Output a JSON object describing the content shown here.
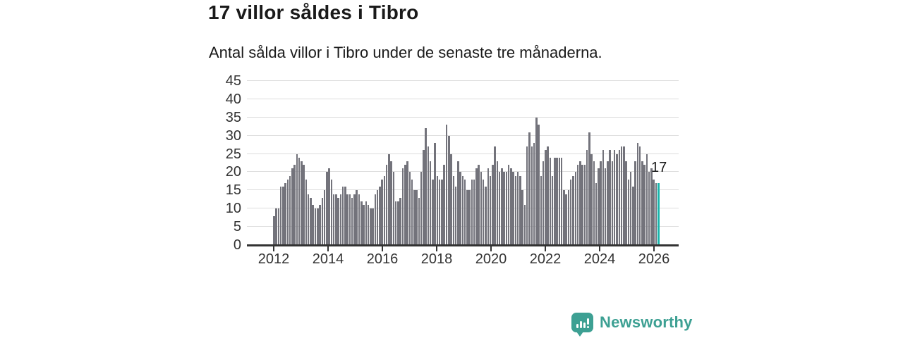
{
  "title": "17 villor såldes i Tibro",
  "subtitle": "Antal sålda villor i Tibro under de senaste tre månaderna.",
  "chart_data": {
    "type": "bar",
    "title": "17 villor såldes i Tibro",
    "subtitle": "Antal sålda villor i Tibro under de senaste tre månaderna.",
    "unit": "sålda villor (rullande 3 månader)",
    "frequency": "monthly",
    "x_start": "2012-03",
    "x_end": "2026-02",
    "values": [
      8,
      10,
      10,
      16,
      16,
      17,
      18,
      19,
      21,
      22,
      25,
      24,
      23,
      22,
      18,
      14,
      13,
      11,
      10,
      10,
      11,
      13,
      15,
      20,
      21,
      18,
      14,
      14,
      13,
      14,
      16,
      16,
      14,
      14,
      13,
      14,
      15,
      14,
      12,
      11,
      12,
      11,
      10,
      10,
      14,
      15,
      16,
      18,
      19,
      22,
      25,
      23,
      20,
      12,
      12,
      13,
      21,
      22,
      23,
      20,
      18,
      15,
      15,
      13,
      20,
      26,
      32,
      27,
      23,
      18,
      28,
      19,
      18,
      18,
      22,
      33,
      30,
      25,
      19,
      16,
      23,
      20,
      19,
      18,
      15,
      15,
      18,
      18,
      21,
      22,
      20,
      18,
      16,
      21,
      19,
      22,
      27,
      23,
      20,
      21,
      20,
      20,
      22,
      21,
      20,
      19,
      20,
      19,
      15,
      11,
      27,
      31,
      27,
      28,
      35,
      33,
      19,
      23,
      26,
      27,
      24,
      19,
      24,
      24,
      24,
      24,
      15,
      14,
      15,
      18,
      19,
      20,
      22,
      23,
      22,
      22,
      26,
      31,
      25,
      23,
      17,
      21,
      23,
      26,
      21,
      23,
      26,
      23,
      26,
      25,
      26,
      27,
      27,
      23,
      18,
      20,
      16,
      23,
      28,
      27,
      23,
      22,
      25,
      20,
      21,
      18,
      17,
      17
    ],
    "highlight": {
      "index": 167,
      "value": 17,
      "label": "17",
      "color": "#1ab5ac"
    },
    "bar_color": "#73737b",
    "grid": "horizontal",
    "gridline_color": "#dddddd",
    "axis_color": "#333333",
    "y_ticks": [
      0,
      5,
      10,
      15,
      20,
      25,
      30,
      35,
      40,
      45
    ],
    "ylim": [
      0,
      45
    ],
    "ylabel": "",
    "xlabel": "",
    "x_tick_labels": [
      "2012",
      "2014",
      "2016",
      "2018",
      "2020",
      "2022",
      "2024",
      "2026"
    ],
    "legend": "none"
  },
  "branding": {
    "logo_text": "Newsworthy",
    "logo_color": "#3da093",
    "icon": "bar-chart-exclamation-speech-bubble"
  }
}
